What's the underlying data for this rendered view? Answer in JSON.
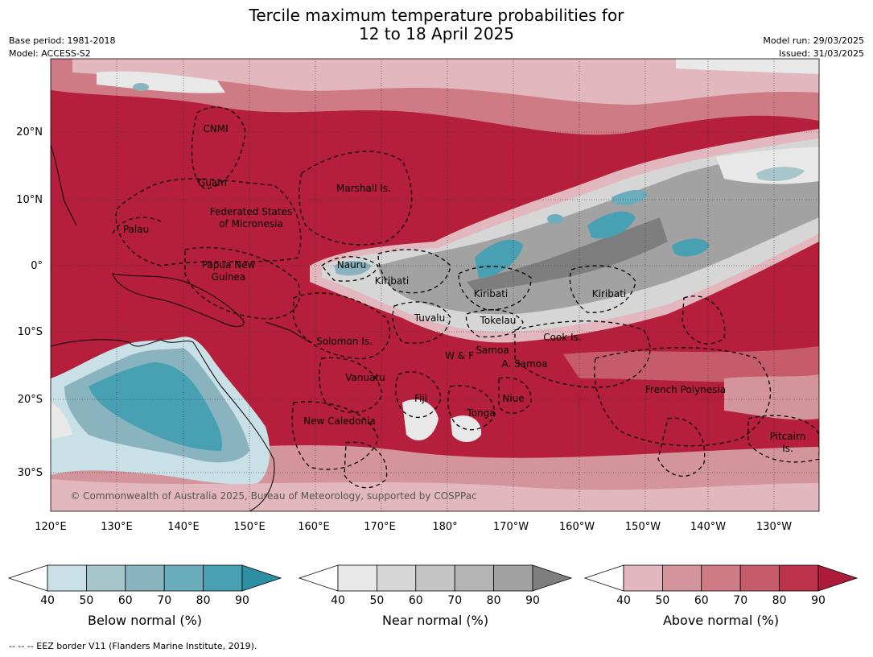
{
  "title_line1": "Tercile maximum temperature probabilities for",
  "title_line2": "12 to 18 April 2025",
  "meta_left": [
    "Base period: 1981-2018",
    "Model: ACCESS-S2"
  ],
  "meta_right": [
    "Model run: 29/03/2025",
    "Issued: 31/03/2025"
  ],
  "lon_labels": [
    "120°E",
    "130°E",
    "140°E",
    "150°E",
    "160°E",
    "170°E",
    "180°",
    "170°W",
    "160°W",
    "150°W",
    "140°W",
    "130°W"
  ],
  "lat_labels": [
    "20°N",
    "10°N",
    "0°",
    "10°S",
    "20°S",
    "30°S"
  ],
  "copyright": "© Commonwealth of Australia 2025, Bureau of Meteorology, supported by COSPPac",
  "regions": [
    {
      "name": "CNMI"
    },
    {
      "name": "Guam"
    },
    {
      "name": "Marshall Is."
    },
    {
      "name": "Federated States"
    },
    {
      "name": "of Micronesia"
    },
    {
      "name": "Palau"
    },
    {
      "name": "Papua New"
    },
    {
      "name": "Guinea"
    },
    {
      "name": "Nauru"
    },
    {
      "name": "Kiribati"
    },
    {
      "name": "Kiribati"
    },
    {
      "name": "Kiribati"
    },
    {
      "name": "Tuvalu"
    },
    {
      "name": "Tokelau"
    },
    {
      "name": "Solomon Is."
    },
    {
      "name": "Cook Is."
    },
    {
      "name": "Samoa"
    },
    {
      "name": "W & F"
    },
    {
      "name": "A. Samoa"
    },
    {
      "name": "Vanuatu"
    },
    {
      "name": "Fiji"
    },
    {
      "name": "Niue"
    },
    {
      "name": "French Polynesia"
    },
    {
      "name": "Tonga"
    },
    {
      "name": "New Caledonia"
    },
    {
      "name": "Pitcairn"
    },
    {
      "name": "Is."
    }
  ],
  "colorbars": [
    {
      "label": "Below normal (%)",
      "ticks": [
        "40",
        "50",
        "60",
        "70",
        "80",
        "90"
      ],
      "colors": [
        "#ffffff",
        "#c9e0e7",
        "#a6c6cc",
        "#8ab3c0",
        "#6aadbc",
        "#47a1b2",
        "#2c8fa4"
      ]
    },
    {
      "label": "Near normal (%)",
      "ticks": [
        "40",
        "50",
        "60",
        "70",
        "80",
        "90"
      ],
      "colors": [
        "#ffffff",
        "#e8e8e8",
        "#d6d6d6",
        "#c5c5c5",
        "#b4b4b4",
        "#a2a2a2",
        "#7e7e7e"
      ]
    },
    {
      "label": "Above normal (%)",
      "ticks": [
        "40",
        "50",
        "60",
        "70",
        "80",
        "90"
      ],
      "colors": [
        "#ffffff",
        "#e2b7bd",
        "#d4949c",
        "#cf7b85",
        "#c65b69",
        "#bb3249",
        "#ad1b3b"
      ]
    }
  ],
  "footnote": "-- -- -- EEZ border V11 (Flanders Marine Institute, 2019)."
}
